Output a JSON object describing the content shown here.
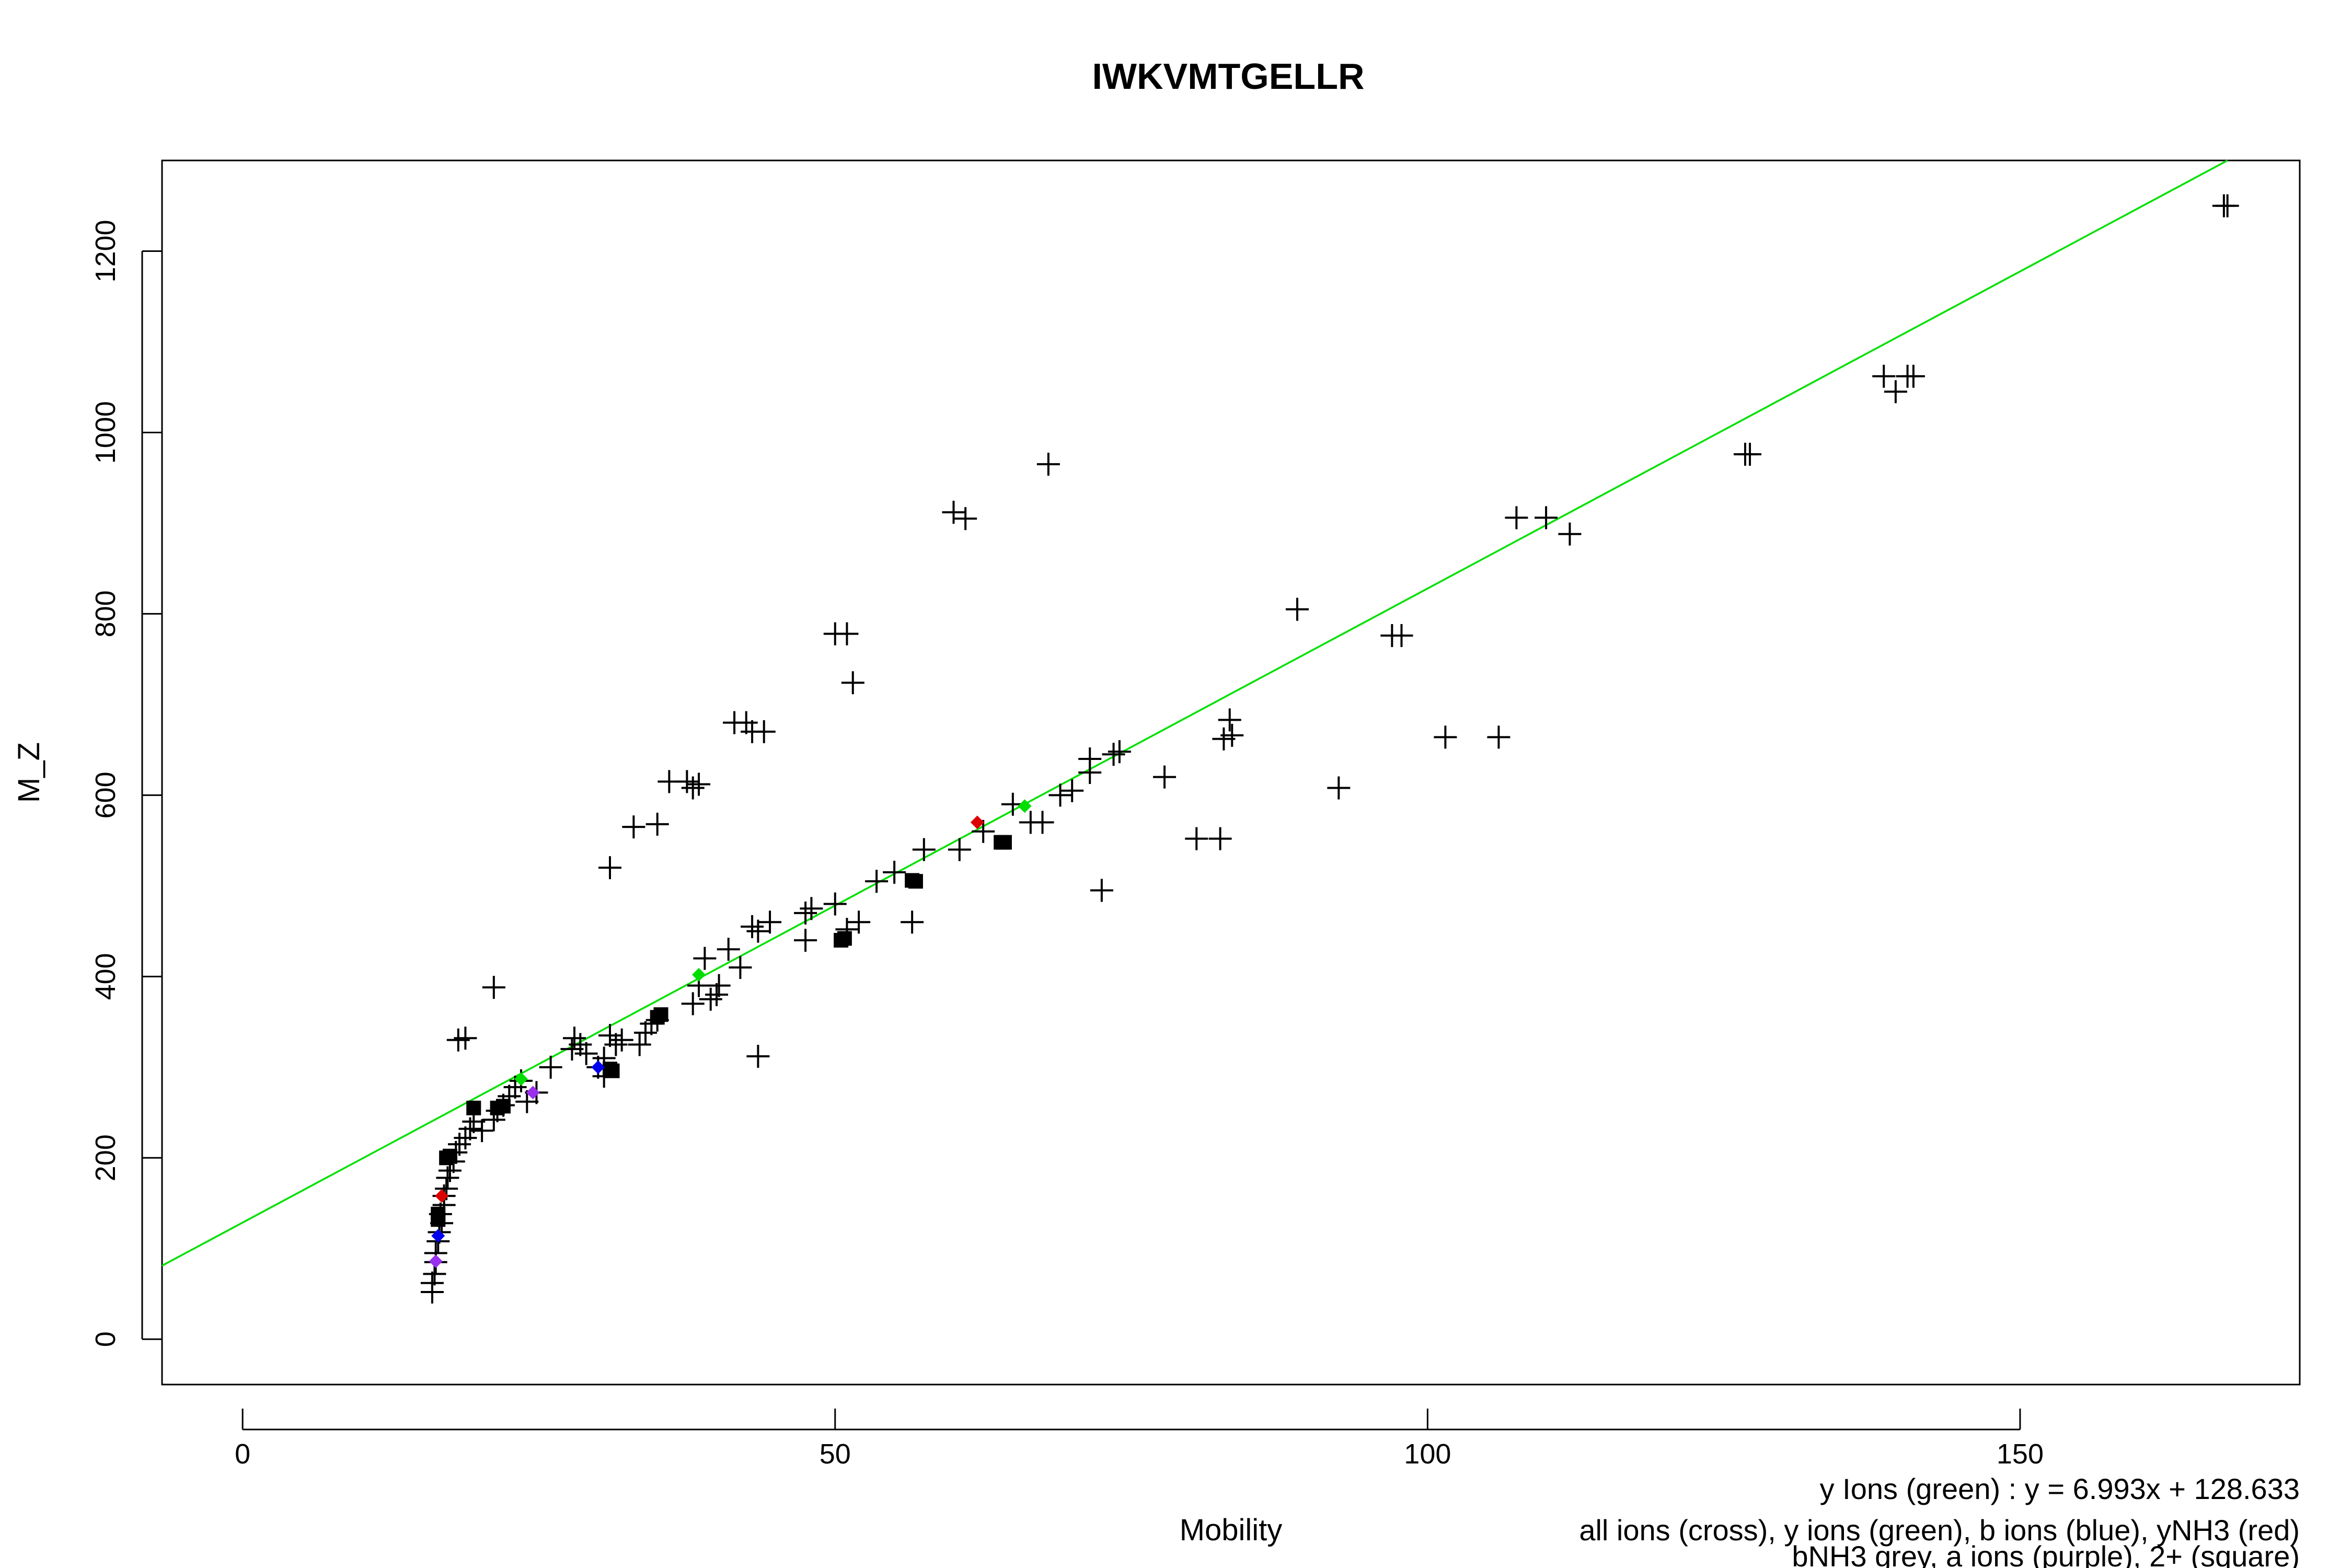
{
  "chart_data": {
    "type": "scatter",
    "title": "IWKVMTGELLR",
    "xlabel": "Mobility",
    "ylabel": "M_Z",
    "xlim": [
      -6.8,
      173.6
    ],
    "ylim": [
      -50,
      1300
    ],
    "xticks": [
      0,
      50,
      100,
      150
    ],
    "yticks": [
      0,
      200,
      400,
      600,
      800,
      1000,
      1200
    ],
    "grid": false,
    "fit_line": {
      "color": "#00e000",
      "slope": 6.993,
      "intercept": 128.633
    },
    "annotations": [
      "y Ions (green) : y = 6.993x + 128.633",
      "all ions (cross), y ions (green), b ions (blue), yNH3 (red)",
      "bNH3 grey, a ions (purple), 2+ (square)"
    ],
    "series": [
      {
        "marker": "cross",
        "color": "#000000",
        "points": [
          [
            16,
            52
          ],
          [
            16,
            62
          ],
          [
            16.2,
            72
          ],
          [
            16.3,
            85
          ],
          [
            16.3,
            95
          ],
          [
            16.5,
            108
          ],
          [
            16.6,
            118
          ],
          [
            16.8,
            128
          ],
          [
            16.7,
            138
          ],
          [
            17,
            148
          ],
          [
            17,
            158
          ],
          [
            17.2,
            166
          ],
          [
            17.3,
            178
          ],
          [
            17.5,
            186
          ],
          [
            17.8,
            196
          ],
          [
            18,
            206
          ],
          [
            18.3,
            215
          ],
          [
            18.8,
            222
          ],
          [
            19.2,
            232
          ],
          [
            19.5,
            240
          ],
          [
            20.2,
            230
          ],
          [
            21.2,
            242
          ],
          [
            21.5,
            252
          ],
          [
            22,
            258
          ],
          [
            22.5,
            268
          ],
          [
            23,
            278
          ],
          [
            23.5,
            285
          ],
          [
            24,
            262
          ],
          [
            24.8,
            272
          ],
          [
            18.2,
            330
          ],
          [
            18.8,
            332
          ],
          [
            21.2,
            388
          ],
          [
            26,
            300
          ],
          [
            27.8,
            320
          ],
          [
            28,
            332
          ],
          [
            28.5,
            325
          ],
          [
            29,
            315
          ],
          [
            30,
            300
          ],
          [
            30.5,
            290
          ],
          [
            30.5,
            310
          ],
          [
            31,
            335
          ],
          [
            31.5,
            325
          ],
          [
            32,
            330
          ],
          [
            33.5,
            325
          ],
          [
            34,
            338
          ],
          [
            34.5,
            348
          ],
          [
            35,
            352
          ],
          [
            31,
            520
          ],
          [
            33,
            565
          ],
          [
            35,
            568
          ],
          [
            36,
            615
          ],
          [
            37.5,
            615
          ],
          [
            38,
            608
          ],
          [
            38.5,
            612
          ],
          [
            38,
            370
          ],
          [
            38.5,
            390
          ],
          [
            39,
            420
          ],
          [
            39.5,
            375
          ],
          [
            40,
            380
          ],
          [
            40.2,
            390
          ],
          [
            41,
            430
          ],
          [
            42,
            410
          ],
          [
            43,
            455
          ],
          [
            43.5,
            450
          ],
          [
            44.5,
            460
          ],
          [
            43,
            670
          ],
          [
            44,
            670
          ],
          [
            41.5,
            680
          ],
          [
            42.5,
            680
          ],
          [
            43.5,
            312
          ],
          [
            47.5,
            440
          ],
          [
            47.5,
            470
          ],
          [
            48,
            475
          ],
          [
            50,
            480
          ],
          [
            51,
            452
          ],
          [
            52,
            460
          ],
          [
            53.5,
            505
          ],
          [
            55,
            515
          ],
          [
            56.5,
            460
          ],
          [
            57.5,
            540
          ],
          [
            60,
            912
          ],
          [
            61,
            905
          ],
          [
            60.5,
            540
          ],
          [
            62.5,
            560
          ],
          [
            65,
            590
          ],
          [
            66.5,
            570
          ],
          [
            68,
            965
          ],
          [
            67.5,
            570
          ],
          [
            69,
            600
          ],
          [
            70,
            605
          ],
          [
            71.5,
            625
          ],
          [
            71.5,
            640
          ],
          [
            72.5,
            495
          ],
          [
            73.5,
            645
          ],
          [
            74,
            648
          ],
          [
            50,
            778
          ],
          [
            51,
            778
          ],
          [
            51.5,
            724
          ],
          [
            77.8,
            620
          ],
          [
            80.5,
            552
          ],
          [
            82.5,
            552
          ],
          [
            82.8,
            662
          ],
          [
            83.5,
            666
          ],
          [
            83.3,
            683
          ],
          [
            89,
            805
          ],
          [
            92.5,
            608
          ],
          [
            97,
            776
          ],
          [
            97.8,
            776
          ],
          [
            101.5,
            664
          ],
          [
            106,
            664
          ],
          [
            107.5,
            906
          ],
          [
            110,
            906
          ],
          [
            112,
            888
          ],
          [
            126.8,
            976
          ],
          [
            127.2,
            976
          ],
          [
            138.5,
            1062
          ],
          [
            139.5,
            1045
          ],
          [
            140.5,
            1062
          ],
          [
            141,
            1062
          ],
          [
            167.2,
            1250
          ],
          [
            167.5,
            1250
          ]
        ]
      },
      {
        "marker": "square",
        "color": "#000000",
        "points": [
          [
            16.5,
            132
          ],
          [
            16.5,
            138
          ],
          [
            17.2,
            200
          ],
          [
            17.5,
            202
          ],
          [
            19.5,
            255
          ],
          [
            21.5,
            255
          ],
          [
            22,
            257
          ],
          [
            31,
            298
          ],
          [
            31.2,
            296
          ],
          [
            35,
            355
          ],
          [
            35.3,
            358
          ],
          [
            50.5,
            440
          ],
          [
            50.8,
            442
          ],
          [
            56.5,
            506
          ],
          [
            56.8,
            505
          ],
          [
            64,
            548
          ],
          [
            64.3,
            548
          ]
        ]
      },
      {
        "marker": "diamond",
        "color": "#00dd00",
        "points": [
          [
            23.5,
            287
          ],
          [
            38.5,
            402
          ],
          [
            66,
            588
          ]
        ]
      },
      {
        "marker": "diamond",
        "color": "#0000ee",
        "points": [
          [
            16.5,
            114
          ],
          [
            30,
            300
          ]
        ]
      },
      {
        "marker": "diamond",
        "color": "#dd0000",
        "points": [
          [
            16.8,
            158
          ],
          [
            62,
            570
          ]
        ]
      },
      {
        "marker": "diamond",
        "color": "#9a30ee",
        "points": [
          [
            16.3,
            86
          ],
          [
            24.5,
            272
          ]
        ]
      }
    ]
  }
}
